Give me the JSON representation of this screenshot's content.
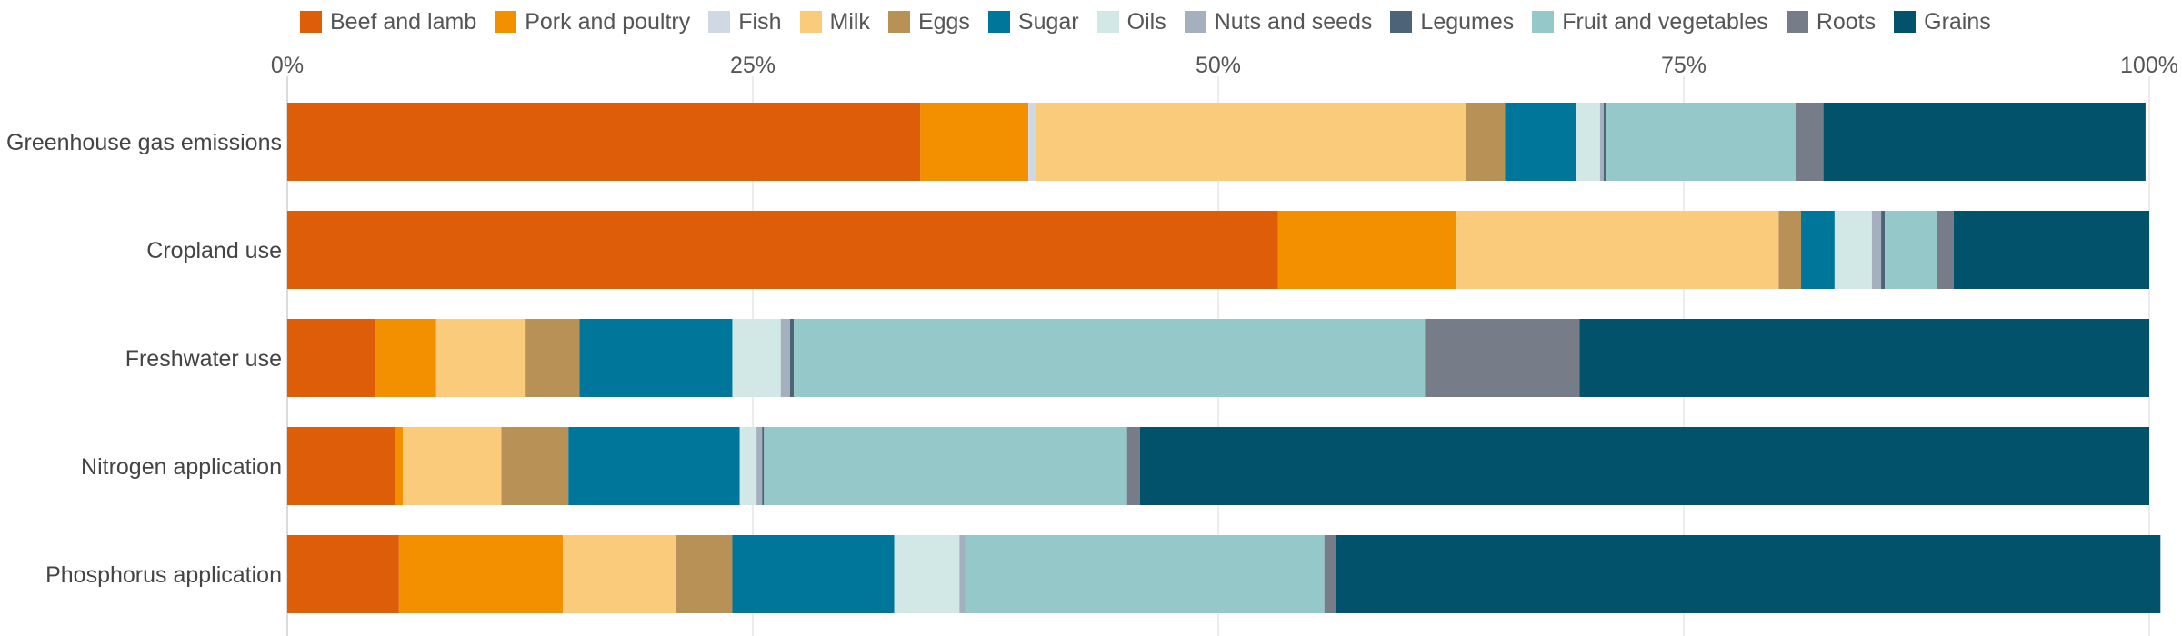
{
  "chart_data": {
    "type": "bar",
    "orientation": "horizontal",
    "stacked": true,
    "normalized": true,
    "legend": "top",
    "grid": true,
    "xlim": [
      0,
      100
    ],
    "ticks": [
      "0%",
      "25%",
      "50%",
      "75%",
      "100%"
    ],
    "categories": [
      "Greenhouse gas emissions",
      "Cropland use",
      "Freshwater use",
      "Nitrogen application",
      "Phosphorus application"
    ],
    "series": [
      {
        "name": "Beef and lamb",
        "color": "#de5d09",
        "values": [
          34.0,
          53.2,
          4.7,
          5.8,
          6.0
        ]
      },
      {
        "name": "Pork and poultry",
        "color": "#f39000",
        "values": [
          5.8,
          9.6,
          3.3,
          0.4,
          8.8
        ]
      },
      {
        "name": "Fish",
        "color": "#cfd8e3",
        "values": [
          0.4,
          0.0,
          0.0,
          0.0,
          0.0
        ]
      },
      {
        "name": "Milk",
        "color": "#fbcb7c",
        "values": [
          23.1,
          17.3,
          4.8,
          5.3,
          6.1
        ]
      },
      {
        "name": "Eggs",
        "color": "#b89157",
        "values": [
          2.1,
          1.2,
          2.9,
          3.6,
          3.0
        ]
      },
      {
        "name": "Sugar",
        "color": "#00769b",
        "values": [
          3.8,
          1.8,
          8.2,
          9.2,
          8.7
        ]
      },
      {
        "name": "Oils",
        "color": "#d2e8e6",
        "values": [
          1.3,
          2.0,
          2.6,
          0.9,
          3.5
        ]
      },
      {
        "name": "Nuts and seeds",
        "color": "#a4b0bd",
        "values": [
          0.2,
          0.5,
          0.5,
          0.3,
          0.3
        ]
      },
      {
        "name": "Legumes",
        "color": "#4c6378",
        "values": [
          0.1,
          0.2,
          0.2,
          0.1,
          0.0
        ]
      },
      {
        "name": "Fruit and vegetables",
        "color": "#95c8c8",
        "values": [
          10.2,
          2.8,
          33.9,
          19.5,
          19.3
        ]
      },
      {
        "name": "Roots",
        "color": "#767d88",
        "values": [
          1.5,
          0.9,
          8.3,
          0.7,
          0.6
        ]
      },
      {
        "name": "Grains",
        "color": "#02526c",
        "values": [
          17.3,
          10.5,
          30.6,
          54.2,
          44.3
        ]
      }
    ]
  }
}
